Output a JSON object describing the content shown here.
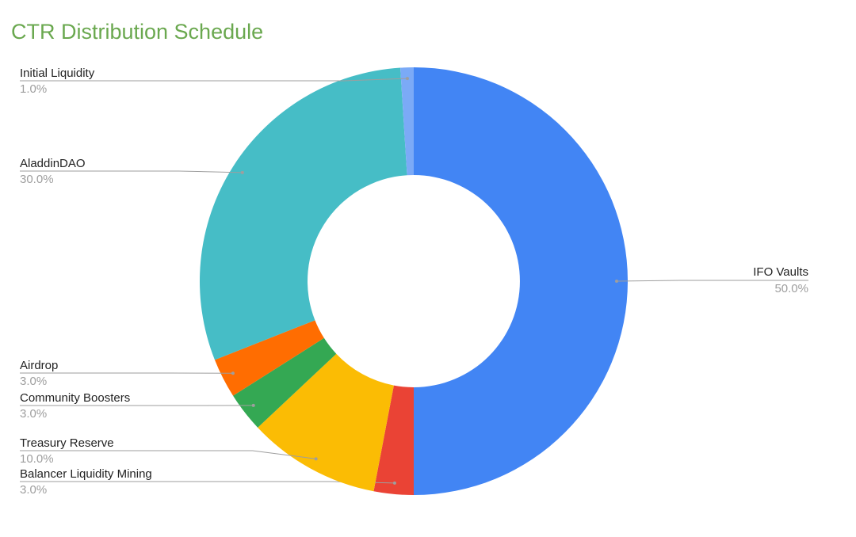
{
  "chart_data": {
    "type": "donut",
    "title": "CTR Distribution Schedule",
    "categories": [
      "IFO Vaults",
      "Balancer Liquidity Mining",
      "Treasury Reserve",
      "Community Boosters",
      "Airdrop",
      "AladdinDAO",
      "Initial Liquidity"
    ],
    "values": [
      50,
      3,
      10,
      3,
      3,
      30,
      1
    ],
    "value_labels": [
      "50.0%",
      "3.0%",
      "10.0%",
      "3.0%",
      "3.0%",
      "30.0%",
      "1.0%"
    ],
    "colors": [
      "#4285f4",
      "#ea4335",
      "#fbbc04",
      "#34a853",
      "#ff6d01",
      "#46bdc6",
      "#7baaf7"
    ]
  }
}
